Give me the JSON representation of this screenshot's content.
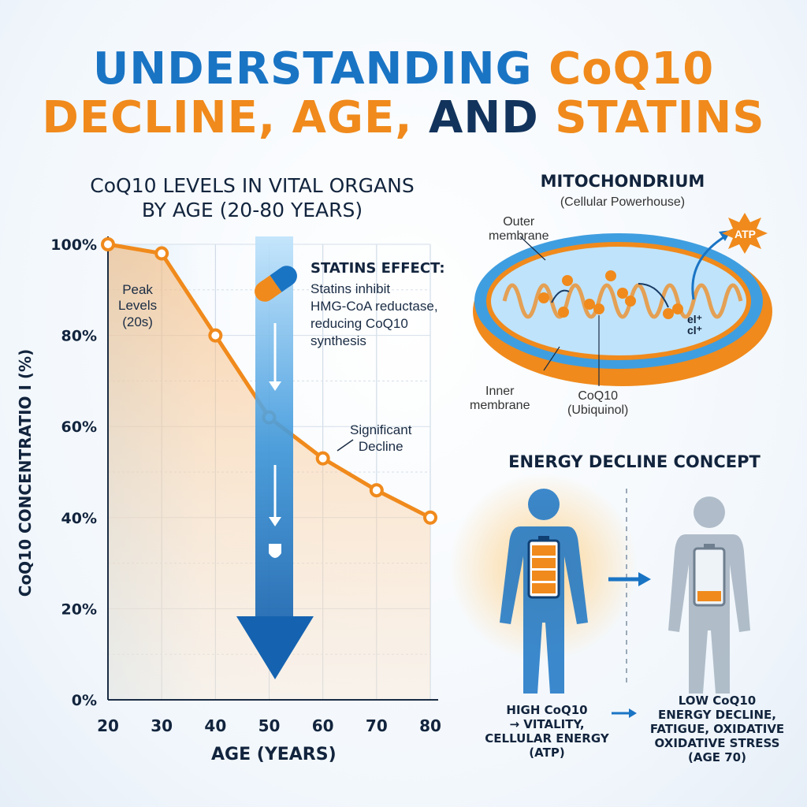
{
  "header": {
    "line1_part1": "UNDERSTANDING",
    "line1_part2": "CoQ10",
    "line2_part1": "DECLINE,",
    "line2_part2": "AGE,",
    "line2_part3": "AND",
    "line2_part4": "STATINS"
  },
  "chart_data": {
    "type": "line",
    "title_line1": "CoQ10 LEVELS IN VITAL ORGANS",
    "title_line2": "BY AGE (20-80 YEARS)",
    "xlabel": "AGE (YEARS)",
    "ylabel": "CoQ10 CONCENTRATIO I (%)",
    "x": [
      20,
      30,
      40,
      50,
      60,
      70,
      80
    ],
    "values": [
      100,
      98,
      80,
      62,
      53,
      46,
      40
    ],
    "xlim": [
      20,
      80
    ],
    "ylim": [
      0,
      100
    ],
    "x_ticks": [
      "20",
      "30",
      "40",
      "50",
      "60",
      "70",
      "80"
    ],
    "y_ticks": [
      "0%",
      "20%",
      "40%",
      "60%",
      "80%",
      "100%"
    ],
    "grid": true,
    "line_color": "#f08a1c",
    "arrow_color": "#1a74c4",
    "annotations": {
      "peak": "Peak\nLevels\n(20s)",
      "decline": "Significant\nDecline",
      "statins_heading": "STATINS EFFECT:",
      "statins_body": "Statins inhibit\nHMG-CoA reductase,\nreducing CoQ10\nsynthesis"
    }
  },
  "mitochondrion": {
    "title": "MITOCHONDRIUM",
    "subtitle": "(Cellular Powerhouse)",
    "outer_label": "Outer\nmembrane",
    "inner_label": "Inner\nmembrane",
    "coq10_label": "CoQ10\n(Ubiquinol)",
    "atp_label": "ATP",
    "ions_label": "el⁺\ncl⁺"
  },
  "energy": {
    "title": "ENERGY DECLINE CONCEPT",
    "high_caption": "HIGH CoQ10\n→ VITALITY,\nCELLULAR ENERGY\n(ATP)",
    "low_caption": "LOW CoQ10\nENERGY DECLINE,\nFATIGUE, OXIDATIVE\nOXIDATIVE STRESS\n(AGE 70)",
    "high_color": "#1a74c4",
    "low_color": "#9aa9b8"
  }
}
